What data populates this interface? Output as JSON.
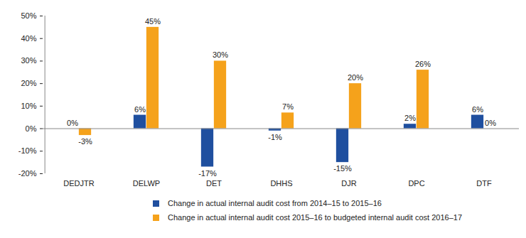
{
  "chart_data": {
    "type": "bar",
    "categories": [
      "DEDJTR",
      "DELWP",
      "DET",
      "DHHS",
      "DJR",
      "DPC",
      "DTF"
    ],
    "series": [
      {
        "name": "Change in actual internal audit cost from 2014–15 to 2015–16",
        "color": "#1f4f9f",
        "values": [
          0,
          6,
          -17,
          -1,
          -15,
          2,
          6
        ],
        "value_labels": [
          "0%",
          "6%",
          "-17%",
          "-1%",
          "-15%",
          "2%",
          "6%"
        ]
      },
      {
        "name": "Change in actual internal audit cost 2015–16 to budgeted internal audit cost 2016–17",
        "color": "#f5a21b",
        "values": [
          -3,
          45,
          30,
          7,
          20,
          26,
          0
        ],
        "value_labels": [
          "-3%",
          "45%",
          "30%",
          "7%",
          "20%",
          "26%",
          "0%"
        ]
      }
    ],
    "ylim": [
      -20,
      50
    ],
    "yticks": [
      {
        "value": -20,
        "label": "-20%"
      },
      {
        "value": -10,
        "label": "-10%"
      },
      {
        "value": 0,
        "label": "0%"
      },
      {
        "value": 10,
        "label": "10%"
      },
      {
        "value": 20,
        "label": "20%"
      },
      {
        "value": 30,
        "label": "30%"
      },
      {
        "value": 40,
        "label": "40%"
      },
      {
        "value": 50,
        "label": "50%"
      }
    ],
    "grid": false,
    "data_labels": true,
    "legend": "bottom"
  }
}
